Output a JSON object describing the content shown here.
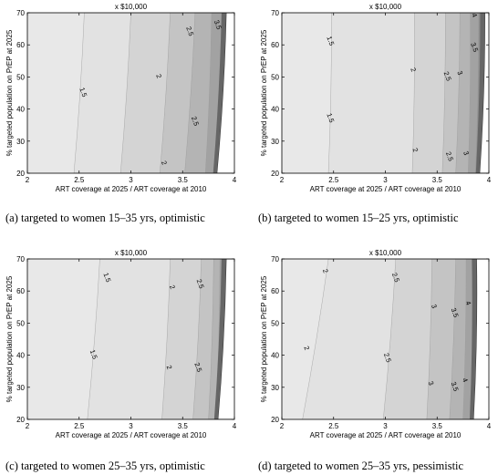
{
  "chart_data": [
    {
      "type": "contour",
      "title": "x $10,000",
      "xlabel": "ART coverage at 2025 / ART coverage at 2010",
      "ylabel": "% targeted population on PrEP at 2025",
      "xlim": [
        2,
        4
      ],
      "ylim": [
        20,
        70
      ],
      "xticks": [
        "2",
        "2.5",
        "3",
        "3.5",
        "4"
      ],
      "yticks": [
        "20",
        "30",
        "40",
        "50",
        "60",
        "70"
      ],
      "caption": "(a)  targeted to women 15–35 yrs, optimistic",
      "levels": [
        1.5,
        2,
        2.5,
        3,
        3.5
      ],
      "boundaries": [
        [
          2.55,
          2.45
        ],
        [
          3.0,
          2.9
        ],
        [
          3.38,
          3.28
        ],
        [
          3.62,
          3.52
        ],
        [
          3.78,
          3.72
        ]
      ],
      "edge": [
        3.92,
        3.83
      ],
      "labels": [
        {
          "text": "1.5",
          "x": 2.52,
          "y": 45
        },
        {
          "text": "2",
          "x": 3.25,
          "y": 50
        },
        {
          "text": "2",
          "x": 3.3,
          "y": 23
        },
        {
          "text": "2.5",
          "x": 3.55,
          "y": 64
        },
        {
          "text": "2.5",
          "x": 3.6,
          "y": 36
        },
        {
          "text": "3.5",
          "x": 3.82,
          "y": 66
        }
      ]
    },
    {
      "type": "contour",
      "title": "x $10,000",
      "xlabel": "ART coverage at 2025 / ART coverage at 2010",
      "ylabel": "% targeted population on PrEP at 2025",
      "xlim": [
        2,
        4
      ],
      "ylim": [
        20,
        70
      ],
      "xticks": [
        "2",
        "2.5",
        "3",
        "3.5",
        "4"
      ],
      "yticks": [
        "20",
        "30",
        "40",
        "50",
        "60",
        "70"
      ],
      "caption": "(b)  targeted to women 15–25 yrs, optimistic",
      "levels": [
        1.5,
        2,
        2.5,
        3,
        3.5,
        4
      ],
      "boundaries": [
        [
          2.48,
          2.45
        ],
        [
          3.28,
          3.26
        ],
        [
          3.58,
          3.55
        ],
        [
          3.72,
          3.68
        ],
        [
          3.82,
          3.8
        ],
        [
          3.9,
          3.87
        ]
      ],
      "edge": [
        3.96,
        3.91
      ],
      "labels": [
        {
          "text": "1.5",
          "x": 2.45,
          "y": 61
        },
        {
          "text": "1.5",
          "x": 2.45,
          "y": 37
        },
        {
          "text": "2",
          "x": 3.25,
          "y": 52
        },
        {
          "text": "2",
          "x": 3.27,
          "y": 27
        },
        {
          "text": "2.5",
          "x": 3.58,
          "y": 50
        },
        {
          "text": "2.5",
          "x": 3.6,
          "y": 25
        },
        {
          "text": "3",
          "x": 3.7,
          "y": 51
        },
        {
          "text": "3",
          "x": 3.76,
          "y": 26
        },
        {
          "text": "3.5",
          "x": 3.84,
          "y": 59
        },
        {
          "text": "4",
          "x": 3.84,
          "y": 69
        }
      ]
    },
    {
      "type": "contour",
      "title": "x $10,000",
      "xlabel": "ART coverage at 2025 / ART coverage at 2010",
      "ylabel": "% targeted population on PrEP at 2025",
      "xlim": [
        2,
        4
      ],
      "ylim": [
        20,
        70
      ],
      "xticks": [
        "2",
        "2.5",
        "3",
        "3.5",
        "4"
      ],
      "yticks": [
        "20",
        "30",
        "40",
        "50",
        "60",
        "70"
      ],
      "caption": "(c)  targeted to women 25–35 yrs, optimistic",
      "levels": [
        1.5,
        2,
        2.5,
        3,
        3.5
      ],
      "boundaries": [
        [
          2.7,
          2.58
        ],
        [
          3.38,
          3.3
        ],
        [
          3.68,
          3.6
        ],
        [
          3.8,
          3.75
        ],
        [
          3.86,
          3.82
        ]
      ],
      "edge": [
        3.92,
        3.84
      ],
      "labels": [
        {
          "text": "1.5",
          "x": 2.75,
          "y": 64
        },
        {
          "text": "1.5",
          "x": 2.62,
          "y": 40
        },
        {
          "text": "2",
          "x": 3.38,
          "y": 61
        },
        {
          "text": "2",
          "x": 3.35,
          "y": 36
        },
        {
          "text": "2.5",
          "x": 3.65,
          "y": 62
        },
        {
          "text": "2.5",
          "x": 3.63,
          "y": 36
        }
      ]
    },
    {
      "type": "contour",
      "title": "x $10,000",
      "xlabel": "ART coverage at 2025 / ART coverage at 2010",
      "ylabel": "% targeted population on PrEP at 2025",
      "xlim": [
        2,
        4
      ],
      "ylim": [
        20,
        70
      ],
      "xticks": [
        "2",
        "2.5",
        "3",
        "3.5",
        "4"
      ],
      "yticks": [
        "20",
        "30",
        "40",
        "50",
        "60",
        "70"
      ],
      "caption": "(d)  targeted to women 25–35 yrs, pessimistic",
      "levels": [
        2,
        2.5,
        3,
        3.5,
        4
      ],
      "boundaries": [
        [
          2.45,
          2.2
        ],
        [
          3.1,
          2.98
        ],
        [
          3.45,
          3.4
        ],
        [
          3.68,
          3.62
        ],
        [
          3.78,
          3.75
        ]
      ],
      "edge": [
        3.88,
        3.85
      ],
      "labels": [
        {
          "text": "2",
          "x": 2.4,
          "y": 66
        },
        {
          "text": "2",
          "x": 2.22,
          "y": 42
        },
        {
          "text": "2.5",
          "x": 3.08,
          "y": 64
        },
        {
          "text": "2.5",
          "x": 3.0,
          "y": 39
        },
        {
          "text": "3",
          "x": 3.45,
          "y": 55
        },
        {
          "text": "3",
          "x": 3.42,
          "y": 31
        },
        {
          "text": "3.5",
          "x": 3.65,
          "y": 53
        },
        {
          "text": "3.5",
          "x": 3.65,
          "y": 30
        },
        {
          "text": "4",
          "x": 3.78,
          "y": 56
        },
        {
          "text": "4",
          "x": 3.75,
          "y": 32
        }
      ]
    }
  ]
}
